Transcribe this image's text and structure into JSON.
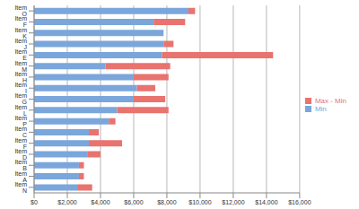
{
  "chart_data": {
    "type": "bar",
    "orientation": "horizontal",
    "stacked": true,
    "grid": true,
    "legend": "right",
    "categories": [
      "Item O",
      "Item F",
      "Item K",
      "Item J",
      "Item E",
      "Item M",
      "Item H",
      "Item I",
      "Item G",
      "Item L",
      "Item P",
      "Item C",
      "Item F",
      "Item D",
      "Item B",
      "Item A",
      "Item N"
    ],
    "series": [
      {
        "name": "Min",
        "color": "#7aa6dc",
        "values": [
          9300,
          7200,
          7800,
          7800,
          7700,
          4300,
          6000,
          6200,
          6000,
          5000,
          4500,
          3300,
          3300,
          3200,
          2700,
          2700,
          2600
        ]
      },
      {
        "name": "Max - Min",
        "color": "#e8736f",
        "values": [
          400,
          1900,
          0,
          600,
          6700,
          3900,
          2100,
          1100,
          1900,
          3100,
          400,
          600,
          2000,
          800,
          300,
          300,
          900
        ]
      }
    ],
    "xlim": [
      0,
      16000
    ],
    "xticks": [
      {
        "value": 0,
        "label": "$0"
      },
      {
        "value": 2000,
        "label": "$2,000"
      },
      {
        "value": 4000,
        "label": "$4,000"
      },
      {
        "value": 6000,
        "label": "$6,000"
      },
      {
        "value": 8000,
        "label": "$8,000"
      },
      {
        "value": 10000,
        "label": "$10,000"
      },
      {
        "value": 12000,
        "label": "$12,000"
      },
      {
        "value": 14000,
        "label": "$14,000"
      },
      {
        "value": 16000,
        "label": "$16,000"
      }
    ]
  }
}
